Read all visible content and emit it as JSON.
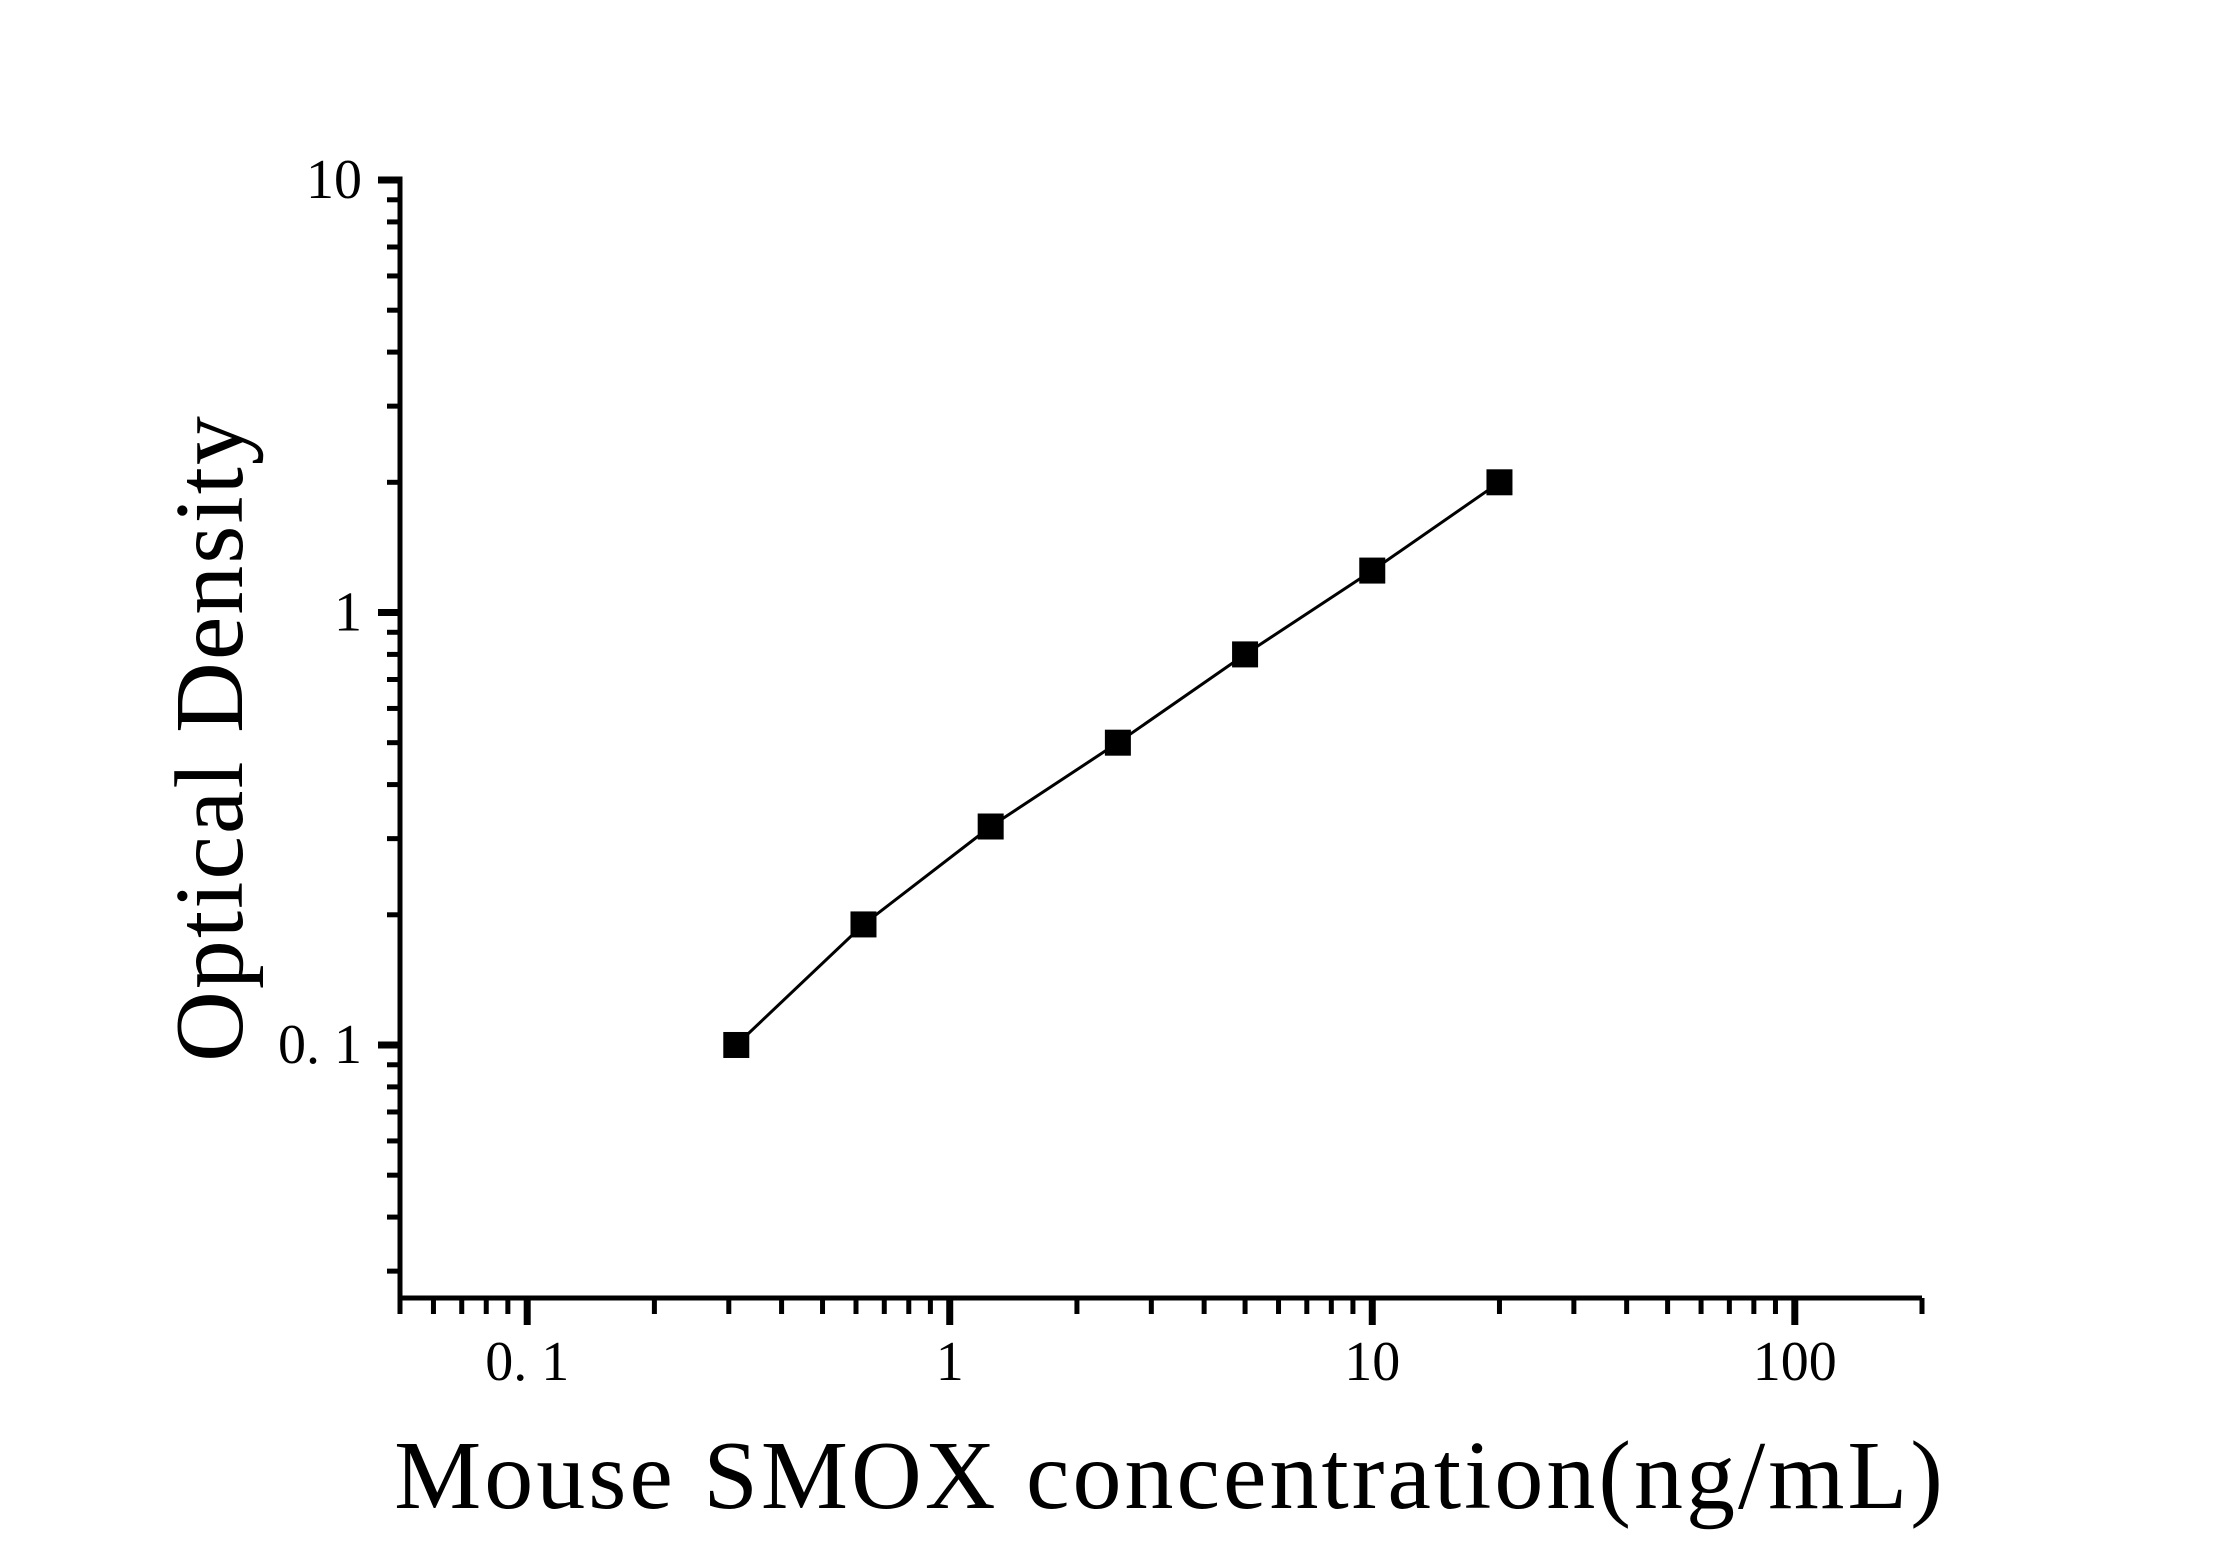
{
  "chart_data": {
    "type": "line",
    "xlabel": "Mouse SMOX concentration(ng/mL)",
    "ylabel": "Optical Density",
    "x_scale": "log",
    "y_scale": "log",
    "xlim": [
      0.05,
      200
    ],
    "ylim": [
      0.026,
      10
    ],
    "x": [
      0.3125,
      0.625,
      1.25,
      2.5,
      5,
      10,
      20
    ],
    "y": [
      0.1,
      0.19,
      0.32,
      0.5,
      0.8,
      1.25,
      2.0
    ],
    "x_major_ticks": [
      0.1,
      1,
      10,
      100
    ],
    "x_major_tick_labels": [
      "0. 1",
      "1",
      "10",
      "100"
    ],
    "y_major_ticks": [
      0.1,
      1,
      10
    ],
    "y_major_tick_labels": [
      "0. 1",
      "1",
      "10"
    ],
    "marker": "filled-square",
    "line_color": "#000000",
    "marker_color": "#000000",
    "background_color": "#ffffff",
    "grid": false,
    "legend": "none"
  }
}
